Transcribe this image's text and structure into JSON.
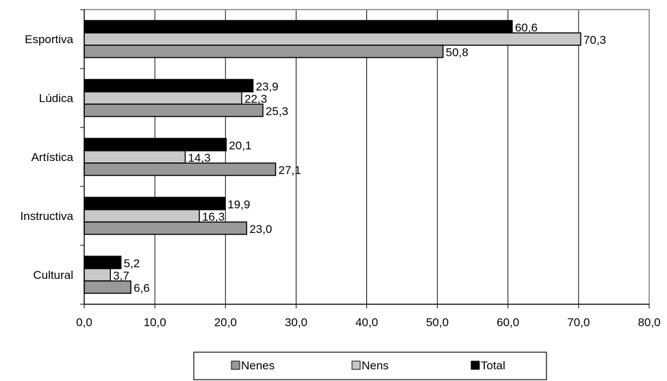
{
  "chart_data": {
    "type": "bar",
    "orientation": "horizontal",
    "categories": [
      "Esportiva",
      "Lúdica",
      "Artística",
      "Instructiva",
      "Cultural"
    ],
    "series": [
      {
        "name": "Nenes",
        "color": "#999999",
        "values": [
          50.8,
          25.3,
          27.1,
          23.0,
          6.6
        ],
        "labels": [
          "50,8",
          "25,3",
          "27,1",
          "23,0",
          "6,6"
        ]
      },
      {
        "name": "Nens",
        "color": "#c8c8c8",
        "values": [
          70.3,
          22.3,
          14.3,
          16.3,
          3.7
        ],
        "labels": [
          "70,3",
          "22,3",
          "14,3",
          "16,3",
          "3,7"
        ]
      },
      {
        "name": "Total",
        "color": "#000000",
        "values": [
          60.6,
          23.9,
          20.1,
          19.9,
          5.2
        ],
        "labels": [
          "60,6",
          "23,9",
          "20,1",
          "19,9",
          "5,2"
        ]
      }
    ],
    "xlim": [
      0,
      80
    ],
    "xticks": [
      "0,0",
      "10,0",
      "20,0",
      "30,0",
      "40,0",
      "50,0",
      "60,0",
      "70,0",
      "80,0"
    ],
    "grid": "vertical",
    "legend": "bottom",
    "title": "",
    "xlabel": "",
    "ylabel": ""
  }
}
